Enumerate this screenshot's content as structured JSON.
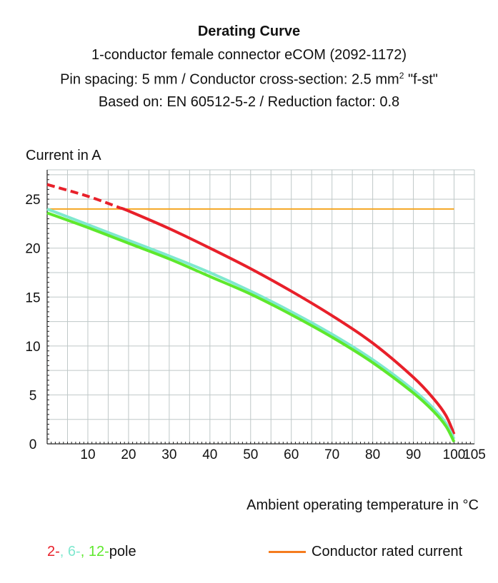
{
  "chart_data": {
    "type": "line",
    "title": "Derating Curve",
    "subtitle_lines": [
      "1-conductor female connector eCOM (2092-1172)",
      "Pin spacing: 5 mm / Conductor cross-section: 2.5 mm",
      "\"f-st\"",
      "Based on: EN 60512-5-2 / Reduction factor: 0.8"
    ],
    "superscript": "2",
    "xlabel": "Ambient operating temperature in °C",
    "ylabel": "Current in A",
    "xlim": [
      0,
      105
    ],
    "ylim": [
      0,
      28
    ],
    "x_ticks": [
      10,
      20,
      30,
      40,
      50,
      60,
      70,
      80,
      90,
      100,
      105
    ],
    "x_ticks_labels": [
      "10",
      "20",
      "30",
      "40",
      "50",
      "60",
      "70",
      "80",
      "90",
      "100",
      "105"
    ],
    "y_ticks": [
      0,
      5,
      10,
      15,
      20,
      25
    ],
    "y_ticks_labels": [
      "0",
      "5",
      "10",
      "15",
      "20",
      "25"
    ],
    "grid": true,
    "series": [
      {
        "name": "2-pole",
        "color": "#e8202a",
        "dashed_until_x": 18,
        "x": [
          0,
          10,
          18,
          20,
          30,
          40,
          50,
          60,
          70,
          80,
          90,
          95,
          98,
          100
        ],
        "y": [
          26.5,
          25.3,
          24.1,
          23.8,
          22.0,
          20.0,
          17.9,
          15.6,
          13.1,
          10.3,
          6.8,
          4.6,
          2.9,
          1.0
        ]
      },
      {
        "name": "6-pole",
        "color": "#7fe8cf",
        "x": [
          0,
          10,
          20,
          30,
          40,
          50,
          60,
          70,
          80,
          90,
          95,
          98,
          100
        ],
        "y": [
          24.0,
          22.4,
          20.8,
          19.2,
          17.5,
          15.6,
          13.5,
          11.2,
          8.6,
          5.5,
          3.6,
          2.1,
          0.5
        ]
      },
      {
        "name": "12-pole",
        "color": "#5ee82c",
        "x": [
          0,
          10,
          20,
          30,
          40,
          50,
          60,
          70,
          80,
          90,
          95,
          98,
          100
        ],
        "y": [
          23.6,
          22.1,
          20.5,
          18.9,
          17.1,
          15.3,
          13.2,
          10.9,
          8.3,
          5.2,
          3.3,
          1.8,
          0.2
        ]
      },
      {
        "name": "Conductor rated current",
        "color": "#f5a623",
        "x": [
          0,
          100
        ],
        "y": [
          24,
          24
        ]
      }
    ],
    "legend": {
      "pole_parts": [
        "2-",
        "6-",
        "12-",
        "pole"
      ],
      "pole_colors": [
        "#e8202a",
        "#7fe8cf",
        "#5ee82c",
        "#111111"
      ],
      "separator": ", ",
      "rated_label": "Conductor rated current",
      "rated_color": "#f57c1f",
      "placement": "bottom"
    }
  }
}
